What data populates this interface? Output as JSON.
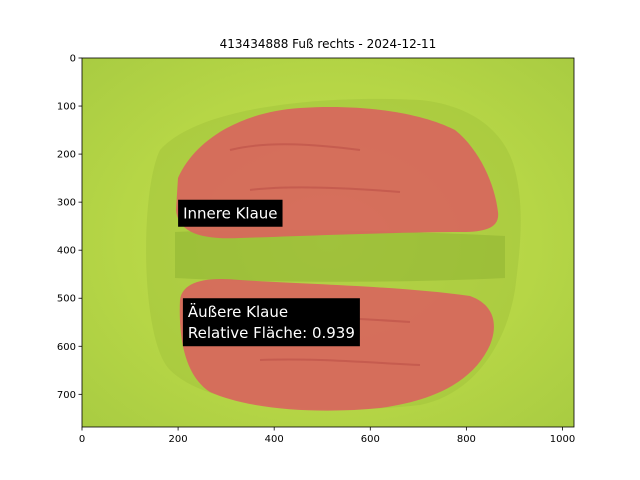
{
  "chart_data": {
    "type": "image",
    "title": "413434888 Fuß rechts - 2024-12-11",
    "xlim": [
      0,
      1024
    ],
    "ylim": [
      768,
      0
    ],
    "xticks": [
      0,
      200,
      400,
      600,
      800,
      1000
    ],
    "yticks": [
      0,
      100,
      200,
      300,
      400,
      500,
      600,
      700
    ],
    "annotations": [
      {
        "lines": [
          "Innere Klaue"
        ],
        "x": 200,
        "y": 295
      },
      {
        "lines": [
          "Äußere Klaue",
          "Relative Fläche: 0.939"
        ],
        "x": 210,
        "y": 500
      }
    ],
    "regions": [
      {
        "name": "Innere Klaue",
        "color": "#d9645e"
      },
      {
        "name": "Äußere Klaue",
        "color": "#d9645e"
      }
    ],
    "colors": {
      "background": "#b8d84a",
      "overlay": "#d9645e",
      "label_box": "#000000"
    }
  }
}
